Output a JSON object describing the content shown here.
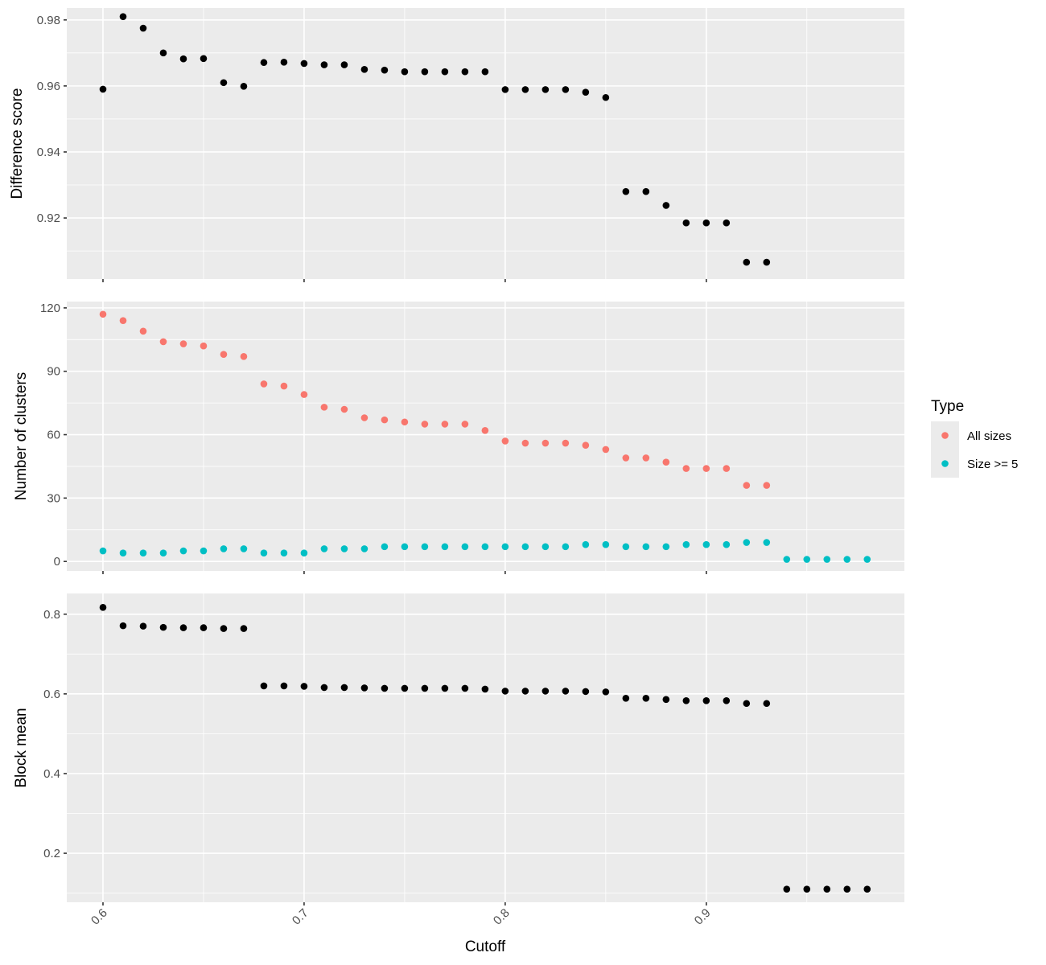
{
  "chart_data": {
    "type": "scatter",
    "x_label": "Cutoff",
    "x_range": [
      0.582,
      0.9985
    ],
    "x_ticks": [
      0.6,
      0.7,
      0.8,
      0.9
    ],
    "x_tick_labels": [
      "0.6",
      "0.7",
      "0.8",
      "0.9"
    ],
    "panels": [
      {
        "id": "difference-score",
        "ylabel": "Difference score",
        "ylim": [
          0.9015,
          0.9836
        ],
        "y_ticks": [
          0.92,
          0.94,
          0.96,
          0.98
        ],
        "y_tick_labels": [
          "0.92",
          "0.94",
          "0.96",
          "0.98"
        ],
        "series": [
          {
            "color": "#000000",
            "x": [
              0.6,
              0.61,
              0.62,
              0.63,
              0.64,
              0.65,
              0.66,
              0.67,
              0.68,
              0.69,
              0.7,
              0.71,
              0.72,
              0.73,
              0.74,
              0.75,
              0.76,
              0.77,
              0.78,
              0.79,
              0.8,
              0.81,
              0.82,
              0.83,
              0.84,
              0.85,
              0.86,
              0.87,
              0.88,
              0.89,
              0.9,
              0.91,
              0.92,
              0.93
            ],
            "y": [
              0.959,
              0.981,
              0.9775,
              0.97,
              0.9682,
              0.9683,
              0.961,
              0.9599,
              0.9671,
              0.9672,
              0.9668,
              0.9664,
              0.9664,
              0.965,
              0.9648,
              0.9643,
              0.9643,
              0.9643,
              0.9643,
              0.9643,
              0.9589,
              0.9589,
              0.9589,
              0.9589,
              0.9581,
              0.9565,
              0.928,
              0.928,
              0.9238,
              0.9185,
              0.9185,
              0.9185,
              0.9066,
              0.9066
            ]
          }
        ]
      },
      {
        "id": "number-of-clusters",
        "ylabel": "Number of clusters",
        "ylim": [
          -4.5,
          123.0
        ],
        "y_ticks": [
          0,
          30,
          60,
          90,
          120
        ],
        "y_tick_labels": [
          "0",
          "30",
          "60",
          "90",
          "120"
        ],
        "series": [
          {
            "name": "All sizes",
            "color": "#F8766D",
            "x": [
              0.6,
              0.61,
              0.62,
              0.63,
              0.64,
              0.65,
              0.66,
              0.67,
              0.68,
              0.69,
              0.7,
              0.71,
              0.72,
              0.73,
              0.74,
              0.75,
              0.76,
              0.77,
              0.78,
              0.79,
              0.8,
              0.81,
              0.82,
              0.83,
              0.84,
              0.85,
              0.86,
              0.87,
              0.88,
              0.89,
              0.9,
              0.91,
              0.92,
              0.93
            ],
            "y": [
              117,
              114,
              109,
              104,
              103,
              102,
              98,
              97,
              84,
              83,
              79,
              73,
              72,
              68,
              67,
              66,
              65,
              65,
              65,
              62,
              57,
              56,
              56,
              56,
              55,
              53,
              49,
              49,
              47,
              44,
              44,
              44,
              36,
              36
            ]
          },
          {
            "name": "Size >= 5",
            "color": "#00BFC4",
            "x": [
              0.6,
              0.61,
              0.62,
              0.63,
              0.64,
              0.65,
              0.66,
              0.67,
              0.68,
              0.69,
              0.7,
              0.71,
              0.72,
              0.73,
              0.74,
              0.75,
              0.76,
              0.77,
              0.78,
              0.79,
              0.8,
              0.81,
              0.82,
              0.83,
              0.84,
              0.85,
              0.86,
              0.87,
              0.88,
              0.89,
              0.9,
              0.91,
              0.92,
              0.93,
              0.94,
              0.95,
              0.96,
              0.97,
              0.98
            ],
            "y": [
              5,
              4,
              4,
              4,
              5,
              5,
              6,
              6,
              4,
              4,
              4,
              6,
              6,
              6,
              7,
              7,
              7,
              7,
              7,
              7,
              7,
              7,
              7,
              7,
              8,
              8,
              7,
              7,
              7,
              8,
              8,
              8,
              9,
              9,
              1,
              1,
              1,
              1,
              1
            ]
          }
        ]
      },
      {
        "id": "block-mean",
        "ylabel": "Block mean",
        "ylim": [
          0.077,
          0.852
        ],
        "y_ticks": [
          0.2,
          0.4,
          0.6,
          0.8
        ],
        "y_tick_labels": [
          "0.2",
          "0.4",
          "0.6",
          "0.8"
        ],
        "series": [
          {
            "color": "#000000",
            "x": [
              0.6,
              0.61,
              0.62,
              0.63,
              0.64,
              0.65,
              0.66,
              0.67,
              0.68,
              0.69,
              0.7,
              0.71,
              0.72,
              0.73,
              0.74,
              0.75,
              0.76,
              0.77,
              0.78,
              0.79,
              0.8,
              0.81,
              0.82,
              0.83,
              0.84,
              0.85,
              0.86,
              0.87,
              0.88,
              0.89,
              0.9,
              0.91,
              0.92,
              0.93,
              0.94,
              0.95,
              0.96,
              0.97,
              0.98
            ],
            "y": [
              0.817,
              0.771,
              0.77,
              0.767,
              0.766,
              0.766,
              0.764,
              0.764,
              0.62,
              0.62,
              0.619,
              0.616,
              0.616,
              0.615,
              0.614,
              0.614,
              0.614,
              0.614,
              0.614,
              0.612,
              0.607,
              0.607,
              0.607,
              0.607,
              0.606,
              0.605,
              0.589,
              0.589,
              0.586,
              0.583,
              0.583,
              0.583,
              0.576,
              0.576,
              0.11,
              0.11,
              0.11,
              0.11,
              0.11
            ]
          }
        ]
      }
    ],
    "legend": {
      "title": "Type",
      "position": "right",
      "entries": [
        {
          "label": "All sizes",
          "color": "#F8766D"
        },
        {
          "label": "Size >= 5",
          "color": "#00BFC4"
        }
      ]
    },
    "grid": true
  }
}
